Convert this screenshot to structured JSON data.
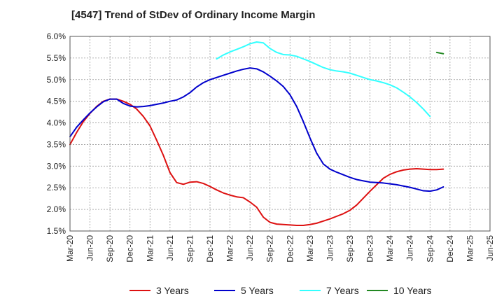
{
  "chart_data": {
    "type": "line",
    "title": "[4547]  Trend of StDev of Ordinary Income Margin",
    "xlabel": "",
    "ylabel": "",
    "ylim": [
      1.5,
      6.0
    ],
    "yticks": [
      "6.0%",
      "5.5%",
      "5.0%",
      "4.5%",
      "4.0%",
      "3.5%",
      "3.0%",
      "2.5%",
      "2.0%",
      "1.5%"
    ],
    "ytick_values": [
      6.0,
      5.5,
      5.0,
      4.5,
      4.0,
      3.5,
      3.0,
      2.5,
      2.0,
      1.5
    ],
    "xticks": [
      "Mar-20",
      "Jun-20",
      "Sep-20",
      "Dec-20",
      "Mar-21",
      "Jun-21",
      "Sep-21",
      "Dec-21",
      "Mar-22",
      "Jun-22",
      "Sep-22",
      "Dec-22",
      "Mar-23",
      "Jun-23",
      "Sep-23",
      "Dec-23",
      "Mar-24",
      "Jun-24",
      "Sep-24",
      "Dec-24",
      "Mar-25",
      "Jun-25"
    ],
    "grid": true,
    "legend_position": "bottom",
    "series": [
      {
        "name": "3 Years",
        "color": "#dd1111",
        "start_index": 0,
        "values": [
          3.5,
          3.78,
          4.03,
          4.22,
          4.38,
          4.5,
          4.55,
          4.55,
          4.5,
          4.43,
          4.32,
          4.15,
          3.93,
          3.6,
          3.25,
          2.85,
          2.62,
          2.58,
          2.63,
          2.64,
          2.6,
          2.53,
          2.45,
          2.38,
          2.33,
          2.29,
          2.27,
          2.17,
          2.05,
          1.82,
          1.7,
          1.66,
          1.65,
          1.64,
          1.63,
          1.63,
          1.65,
          1.68,
          1.73,
          1.78,
          1.84,
          1.9,
          1.98,
          2.1,
          2.26,
          2.42,
          2.57,
          2.72,
          2.81,
          2.87,
          2.91,
          2.93,
          2.94,
          2.93,
          2.92,
          2.92,
          2.93
        ]
      },
      {
        "name": "5 Years",
        "color": "#0000cc",
        "start_index": 0,
        "values": [
          3.68,
          3.9,
          4.07,
          4.23,
          4.37,
          4.49,
          4.55,
          4.55,
          4.45,
          4.39,
          4.37,
          4.38,
          4.4,
          4.43,
          4.46,
          4.5,
          4.53,
          4.6,
          4.7,
          4.83,
          4.93,
          5.0,
          5.05,
          5.1,
          5.15,
          5.2,
          5.24,
          5.27,
          5.25,
          5.18,
          5.08,
          4.97,
          4.84,
          4.65,
          4.38,
          4.03,
          3.65,
          3.3,
          3.05,
          2.93,
          2.86,
          2.8,
          2.74,
          2.69,
          2.66,
          2.63,
          2.62,
          2.61,
          2.59,
          2.57,
          2.54,
          2.51,
          2.47,
          2.43,
          2.42,
          2.45,
          2.52
        ]
      },
      {
        "name": "7 Years",
        "color": "#33ffff",
        "start_index": 22,
        "values": [
          5.48,
          5.57,
          5.64,
          5.7,
          5.76,
          5.83,
          5.87,
          5.85,
          5.72,
          5.63,
          5.58,
          5.57,
          5.54,
          5.48,
          5.42,
          5.35,
          5.28,
          5.23,
          5.2,
          5.18,
          5.15,
          5.1,
          5.05,
          5.0,
          4.97,
          4.93,
          4.88,
          4.81,
          4.71,
          4.6,
          4.47,
          4.32,
          4.15
        ]
      },
      {
        "name": "10 Years",
        "color": "#228822",
        "start_index": 55,
        "values": [
          5.63,
          5.6
        ]
      }
    ]
  }
}
